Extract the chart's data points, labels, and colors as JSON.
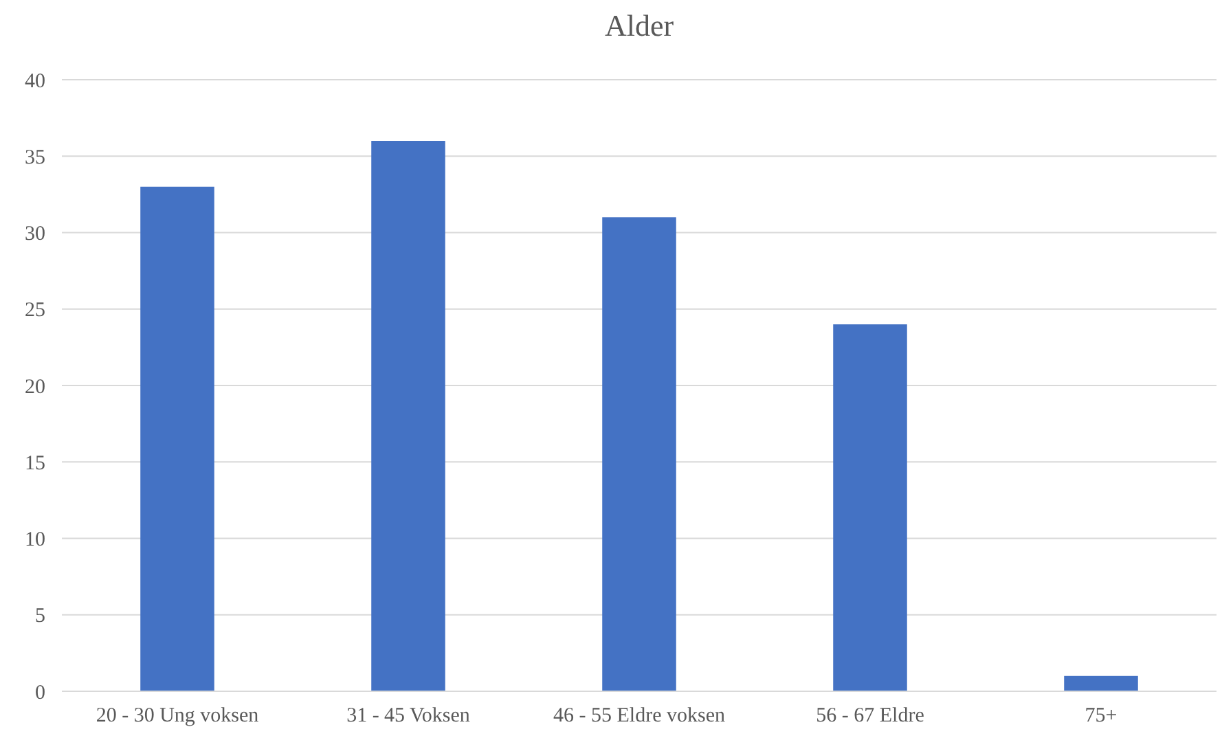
{
  "chart_data": {
    "type": "bar",
    "title": "Alder",
    "categories": [
      "20 - 30 Ung voksen",
      "31 - 45 Voksen",
      "46 - 55 Eldre voksen",
      "56 - 67 Eldre",
      "75+"
    ],
    "values": [
      33,
      36,
      31,
      24,
      1
    ],
    "color": "#4472c4",
    "ylim": [
      0,
      40
    ],
    "yticks": [
      0,
      5,
      10,
      15,
      20,
      25,
      30,
      35,
      40
    ],
    "grid": "y"
  }
}
